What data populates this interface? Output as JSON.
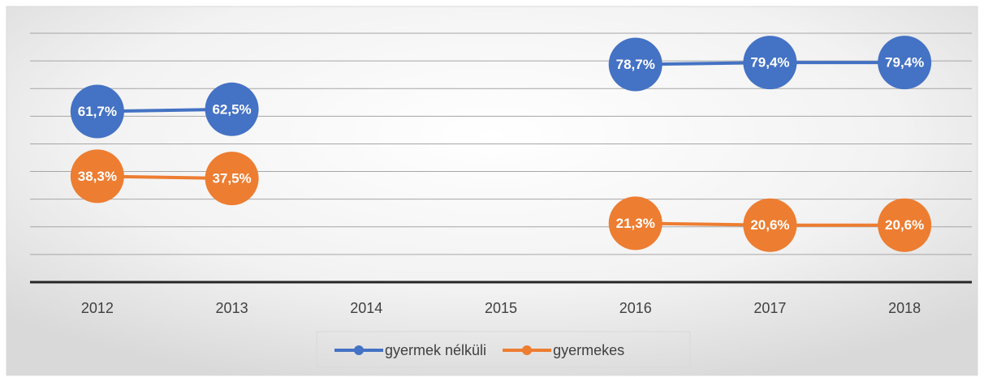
{
  "chart_data": {
    "type": "line",
    "categories": [
      "2012",
      "2013",
      "2014",
      "2015",
      "2016",
      "2017",
      "2018"
    ],
    "series": [
      {
        "name": "gyermek nélküli",
        "color": "#4472c4",
        "values": [
          61.7,
          62.5,
          null,
          null,
          78.7,
          79.4,
          79.4
        ],
        "value_labels": [
          "61,7%",
          "62,5%",
          null,
          null,
          "78,7%",
          "79,4%",
          "79,4%"
        ]
      },
      {
        "name": "gyermekes",
        "color": "#ed7d31",
        "values": [
          38.3,
          37.5,
          null,
          null,
          21.3,
          20.6,
          20.6
        ],
        "value_labels": [
          "38,3%",
          "37,5%",
          null,
          null,
          "21,3%",
          "20,6%",
          "20,6%"
        ]
      }
    ],
    "ylim": [
      0,
      90
    ],
    "yticks": [
      0,
      10,
      20,
      30,
      40,
      50,
      60,
      70,
      80,
      90
    ],
    "grid": true,
    "legend": "bottom"
  }
}
